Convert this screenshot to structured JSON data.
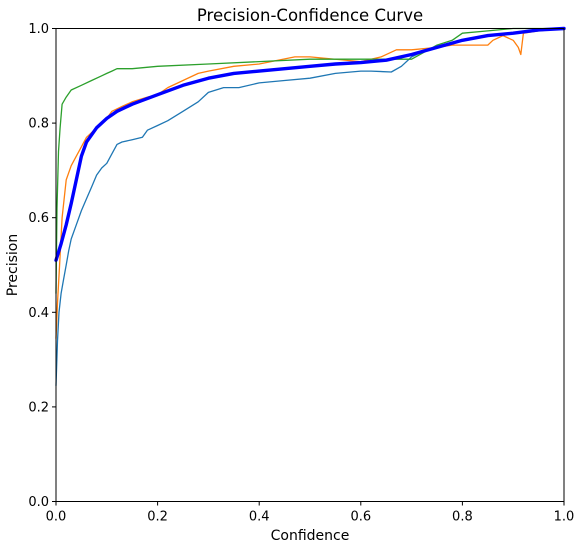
{
  "chart_data": {
    "type": "line",
    "title": "Precision-Confidence Curve",
    "xlabel": "Confidence",
    "ylabel": "Precision",
    "xlim": [
      0.0,
      1.0
    ],
    "ylim": [
      0.0,
      1.0
    ],
    "xticks": [
      "0.0",
      "0.2",
      "0.4",
      "0.6",
      "0.8",
      "1.0"
    ],
    "yticks": [
      "0.0",
      "0.2",
      "0.4",
      "0.6",
      "0.8",
      "1.0"
    ],
    "grid": false,
    "legend": "none",
    "series": [
      {
        "color": "#1f77b4",
        "width": 1.3,
        "x": [
          0.0,
          0.003,
          0.006,
          0.01,
          0.015,
          0.02,
          0.025,
          0.03,
          0.04,
          0.05,
          0.06,
          0.07,
          0.08,
          0.09,
          0.1,
          0.11,
          0.12,
          0.13,
          0.15,
          0.17,
          0.18,
          0.2,
          0.22,
          0.25,
          0.28,
          0.3,
          0.33,
          0.36,
          0.4,
          0.45,
          0.5,
          0.55,
          0.6,
          0.62,
          0.66,
          0.68,
          0.7,
          0.73,
          0.76,
          0.8,
          0.85,
          0.9,
          0.95,
          1.0
        ],
        "y": [
          0.245,
          0.34,
          0.4,
          0.44,
          0.47,
          0.5,
          0.53,
          0.555,
          0.585,
          0.615,
          0.64,
          0.665,
          0.69,
          0.705,
          0.715,
          0.735,
          0.755,
          0.76,
          0.765,
          0.77,
          0.785,
          0.795,
          0.805,
          0.825,
          0.845,
          0.865,
          0.875,
          0.875,
          0.885,
          0.89,
          0.895,
          0.905,
          0.91,
          0.91,
          0.908,
          0.92,
          0.94,
          0.955,
          0.965,
          0.975,
          0.985,
          0.99,
          0.995,
          1.0
        ]
      },
      {
        "color": "#ff7f0e",
        "width": 1.3,
        "x": [
          0.0,
          0.003,
          0.007,
          0.012,
          0.02,
          0.03,
          0.04,
          0.05,
          0.06,
          0.07,
          0.08,
          0.09,
          0.1,
          0.11,
          0.13,
          0.15,
          0.18,
          0.2,
          0.22,
          0.25,
          0.28,
          0.3,
          0.35,
          0.4,
          0.47,
          0.5,
          0.6,
          0.64,
          0.67,
          0.7,
          0.75,
          0.78,
          0.8,
          0.85,
          0.86,
          0.88,
          0.9,
          0.91,
          0.915,
          0.92,
          0.95,
          1.0
        ],
        "y": [
          0.345,
          0.42,
          0.5,
          0.6,
          0.68,
          0.71,
          0.73,
          0.75,
          0.77,
          0.78,
          0.79,
          0.8,
          0.81,
          0.825,
          0.835,
          0.845,
          0.855,
          0.86,
          0.875,
          0.89,
          0.905,
          0.91,
          0.92,
          0.925,
          0.94,
          0.94,
          0.93,
          0.94,
          0.955,
          0.955,
          0.96,
          0.965,
          0.965,
          0.965,
          0.975,
          0.985,
          0.975,
          0.96,
          0.945,
          0.99,
          0.995,
          1.0
        ]
      },
      {
        "color": "#2ca02c",
        "width": 1.3,
        "x": [
          0.0,
          0.002,
          0.005,
          0.008,
          0.012,
          0.02,
          0.03,
          0.05,
          0.07,
          0.09,
          0.1,
          0.11,
          0.12,
          0.15,
          0.2,
          0.3,
          0.4,
          0.5,
          0.6,
          0.7,
          0.75,
          0.78,
          0.8,
          0.85,
          0.9,
          0.95,
          1.0
        ],
        "y": [
          0.44,
          0.62,
          0.74,
          0.79,
          0.84,
          0.855,
          0.87,
          0.88,
          0.89,
          0.9,
          0.905,
          0.91,
          0.915,
          0.915,
          0.92,
          0.925,
          0.93,
          0.935,
          0.935,
          0.935,
          0.965,
          0.975,
          0.99,
          0.995,
          1.0,
          1.0,
          1.0
        ]
      },
      {
        "color": "#0000ff",
        "width": 3.4,
        "x": [
          0.0,
          0.01,
          0.02,
          0.03,
          0.04,
          0.05,
          0.06,
          0.08,
          0.1,
          0.12,
          0.15,
          0.2,
          0.25,
          0.3,
          0.35,
          0.4,
          0.45,
          0.5,
          0.55,
          0.6,
          0.65,
          0.7,
          0.75,
          0.8,
          0.85,
          0.9,
          0.95,
          1.0
        ],
        "y": [
          0.51,
          0.545,
          0.585,
          0.63,
          0.68,
          0.73,
          0.76,
          0.79,
          0.81,
          0.825,
          0.84,
          0.86,
          0.88,
          0.895,
          0.905,
          0.91,
          0.915,
          0.92,
          0.925,
          0.928,
          0.933,
          0.945,
          0.96,
          0.975,
          0.985,
          0.99,
          0.997,
          1.0
        ]
      }
    ]
  }
}
